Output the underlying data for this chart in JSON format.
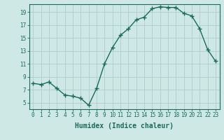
{
  "x": [
    0,
    1,
    2,
    3,
    4,
    5,
    6,
    7,
    8,
    9,
    10,
    11,
    12,
    13,
    14,
    15,
    16,
    17,
    18,
    19,
    20,
    21,
    22,
    23
  ],
  "y": [
    8.0,
    7.8,
    8.2,
    7.2,
    6.2,
    6.0,
    5.7,
    4.6,
    7.2,
    11.0,
    13.5,
    15.4,
    16.4,
    17.8,
    18.2,
    19.5,
    19.8,
    19.7,
    19.7,
    18.8,
    18.4,
    16.4,
    13.2,
    11.4
  ],
  "line_color": "#1a6b5a",
  "marker": "+",
  "marker_size": 4,
  "bg_color": "#cde8e5",
  "grid_color": "#b0ccca",
  "xlabel": "Humidex (Indice chaleur)",
  "xlim": [
    -0.5,
    23.5
  ],
  "ylim": [
    4,
    20.2
  ],
  "yticks": [
    5,
    7,
    9,
    11,
    13,
    15,
    17,
    19
  ],
  "xticks": [
    0,
    1,
    2,
    3,
    4,
    5,
    6,
    7,
    8,
    9,
    10,
    11,
    12,
    13,
    14,
    15,
    16,
    17,
    18,
    19,
    20,
    21,
    22,
    23
  ],
  "xtick_labels": [
    "0",
    "1",
    "2",
    "3",
    "4",
    "5",
    "6",
    "7",
    "8",
    "9",
    "10",
    "11",
    "12",
    "13",
    "14",
    "15",
    "16",
    "17",
    "18",
    "19",
    "20",
    "21",
    "22",
    "23"
  ],
  "tick_color": "#1a6b5a",
  "label_fontsize": 7,
  "tick_fontsize": 5.5,
  "line_width": 1.0,
  "marker_color": "#1a6b5a"
}
